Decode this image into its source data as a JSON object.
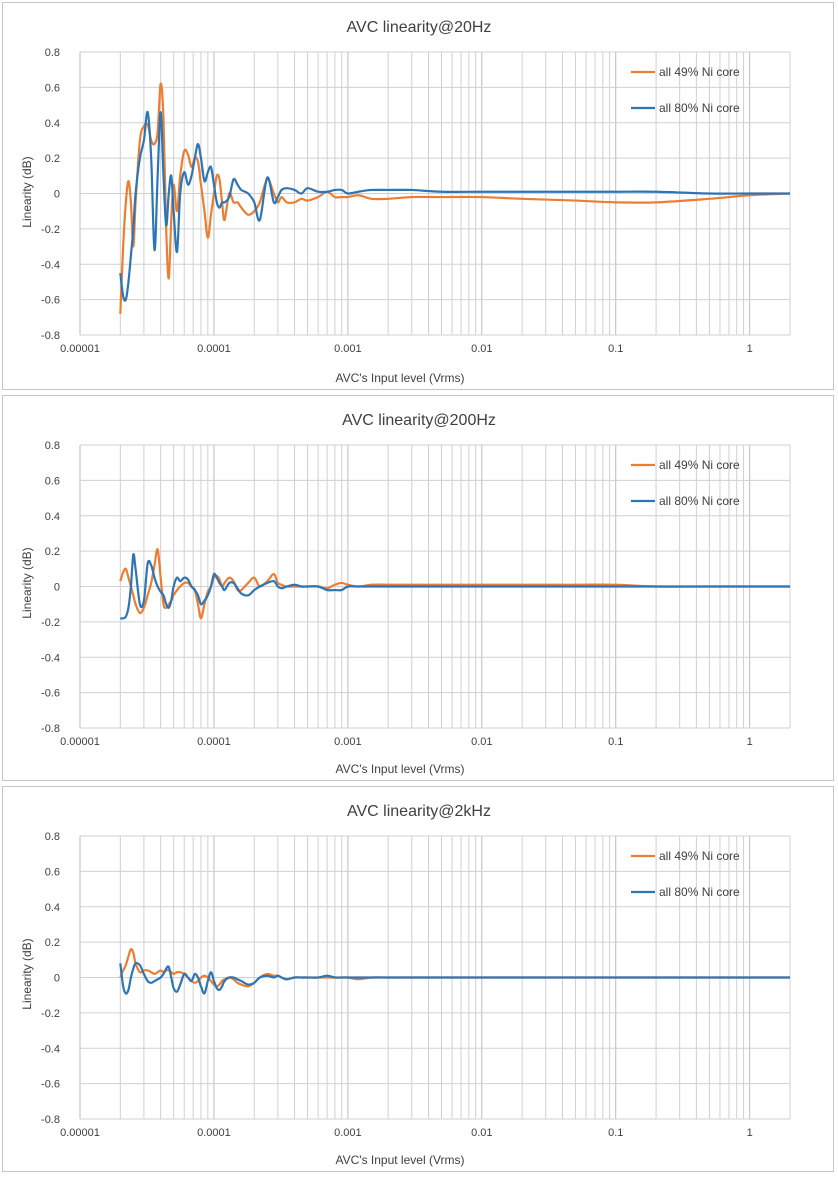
{
  "colors": {
    "series_49": "#ED7D31",
    "series_80": "#2E75B6",
    "grid": "#d0d0d0"
  },
  "chart_data": [
    {
      "type": "line",
      "title": "AVC linearity@20Hz",
      "xlabel": "AVC's Input level (Vrms)",
      "ylabel": "Linearity (dB)",
      "x_scale": "log",
      "xlim": [
        1e-05,
        2
      ],
      "ylim": [
        -0.8,
        0.8
      ],
      "x_tick_labels": [
        "0.00001",
        "0.0001",
        "0.001",
        "0.01",
        "0.1",
        "1"
      ],
      "y_tick_labels": [
        "0.8",
        "0.6",
        "0.4",
        "0.2",
        "0",
        "-0.2",
        "-0.4",
        "-0.6",
        "-0.8"
      ],
      "legend_position": "top-right",
      "grid": true,
      "series": [
        {
          "name": "all 49% Ni core",
          "color": "#ED7D31",
          "x": [
            2e-05,
            2.1e-05,
            2.2e-05,
            2.3e-05,
            2.4e-05,
            2.5e-05,
            2.6e-05,
            2.8e-05,
            3e-05,
            3.2e-05,
            3.4e-05,
            3.6e-05,
            3.8e-05,
            4e-05,
            4.2e-05,
            4.4e-05,
            4.6e-05,
            4.8e-05,
            5e-05,
            5.3e-05,
            5.6e-05,
            6e-05,
            6.4e-05,
            6.8e-05,
            7.2e-05,
            7.6e-05,
            8e-05,
            8.5e-05,
            9e-05,
            9.5e-05,
            0.0001,
            0.000105,
            0.00011,
            0.000115,
            0.00012,
            0.00013,
            0.00014,
            0.00015,
            0.00016,
            0.00018,
            0.0002,
            0.00022,
            0.00025,
            0.00028,
            0.0003,
            0.00032,
            0.00035,
            0.0004,
            0.00045,
            0.0005,
            0.0006,
            0.0007,
            0.0008,
            0.0009,
            0.001,
            0.0012,
            0.0015,
            0.002,
            0.003,
            0.005,
            0.01,
            0.02,
            0.05,
            0.1,
            0.2,
            0.5,
            1,
            2
          ],
          "y": [
            -0.68,
            -0.3,
            -0.05,
            0.07,
            -0.05,
            -0.3,
            -0.05,
            0.3,
            0.38,
            0.39,
            0.3,
            0.28,
            0.35,
            0.62,
            0.42,
            -0.2,
            -0.48,
            -0.15,
            0.05,
            -0.1,
            0.1,
            0.24,
            0.22,
            0.15,
            0.2,
            0.18,
            0.05,
            -0.1,
            -0.25,
            -0.12,
            0.0,
            0.1,
            0.08,
            -0.05,
            -0.15,
            0.0,
            -0.05,
            -0.05,
            -0.08,
            -0.12,
            -0.1,
            -0.05,
            0.08,
            0.0,
            -0.05,
            -0.02,
            -0.05,
            -0.05,
            -0.03,
            -0.04,
            -0.02,
            0.01,
            -0.02,
            -0.02,
            -0.02,
            -0.01,
            -0.03,
            -0.03,
            -0.02,
            -0.02,
            -0.02,
            -0.03,
            -0.04,
            -0.05,
            -0.05,
            -0.03,
            -0.01,
            0.0
          ]
        },
        {
          "name": "all 80% Ni core",
          "color": "#2E75B6",
          "x": [
            2e-05,
            2.1e-05,
            2.2e-05,
            2.3e-05,
            2.4e-05,
            2.5e-05,
            2.6e-05,
            2.8e-05,
            3e-05,
            3.2e-05,
            3.4e-05,
            3.6e-05,
            3.8e-05,
            4e-05,
            4.2e-05,
            4.4e-05,
            4.6e-05,
            4.8e-05,
            5e-05,
            5.3e-05,
            5.6e-05,
            6e-05,
            6.4e-05,
            6.8e-05,
            7.2e-05,
            7.6e-05,
            8e-05,
            8.5e-05,
            9e-05,
            9.5e-05,
            0.0001,
            0.000105,
            0.00011,
            0.000115,
            0.00012,
            0.00013,
            0.00014,
            0.00015,
            0.00016,
            0.00018,
            0.0002,
            0.00022,
            0.00025,
            0.00028,
            0.0003,
            0.00032,
            0.00035,
            0.0004,
            0.00045,
            0.0005,
            0.0006,
            0.0007,
            0.0008,
            0.0009,
            0.001,
            0.0012,
            0.0015,
            0.002,
            0.003,
            0.005,
            0.01,
            0.02,
            0.05,
            0.1,
            0.2,
            0.5,
            1,
            2
          ],
          "y": [
            -0.45,
            -0.58,
            -0.6,
            -0.5,
            -0.35,
            -0.2,
            0.0,
            0.2,
            0.3,
            0.46,
            0.2,
            -0.32,
            0.1,
            0.46,
            0.1,
            -0.18,
            0.0,
            0.1,
            -0.1,
            -0.33,
            0.0,
            0.12,
            0.05,
            0.1,
            0.2,
            0.28,
            0.2,
            0.07,
            0.12,
            0.15,
            0.05,
            -0.05,
            -0.08,
            -0.05,
            -0.05,
            -0.02,
            0.08,
            0.05,
            0.02,
            0.0,
            -0.05,
            -0.15,
            0.09,
            -0.05,
            -0.02,
            0.02,
            0.03,
            0.02,
            0.0,
            0.03,
            0.01,
            0.01,
            0.02,
            0.02,
            0.0,
            0.01,
            0.02,
            0.02,
            0.02,
            0.01,
            0.01,
            0.01,
            0.01,
            0.01,
            0.01,
            0.0,
            0.0,
            0.0
          ]
        }
      ]
    },
    {
      "type": "line",
      "title": "AVC linearity@200Hz",
      "xlabel": "AVC's Input level (Vrms)",
      "ylabel": "Linearity (dB)",
      "x_scale": "log",
      "xlim": [
        1e-05,
        2
      ],
      "ylim": [
        -0.8,
        0.8
      ],
      "x_tick_labels": [
        "0.00001",
        "0.0001",
        "0.001",
        "0.01",
        "0.1",
        "1"
      ],
      "y_tick_labels": [
        "0.8",
        "0.6",
        "0.4",
        "0.2",
        "0",
        "-0.2",
        "-0.4",
        "-0.6",
        "-0.8"
      ],
      "legend_position": "top-right",
      "grid": true,
      "series": [
        {
          "name": "all 49% Ni core",
          "color": "#ED7D31",
          "x": [
            2e-05,
            2.1e-05,
            2.2e-05,
            2.3e-05,
            2.4e-05,
            2.5e-05,
            2.6e-05,
            2.8e-05,
            3e-05,
            3.2e-05,
            3.4e-05,
            3.6e-05,
            3.8e-05,
            4e-05,
            4.2e-05,
            4.4e-05,
            4.6e-05,
            4.8e-05,
            5e-05,
            5.3e-05,
            5.6e-05,
            6e-05,
            6.4e-05,
            6.8e-05,
            7.2e-05,
            7.6e-05,
            8e-05,
            8.5e-05,
            9e-05,
            9.5e-05,
            0.0001,
            0.000105,
            0.00011,
            0.000115,
            0.00012,
            0.00013,
            0.00014,
            0.00015,
            0.00016,
            0.00018,
            0.0002,
            0.00022,
            0.00025,
            0.00028,
            0.0003,
            0.00032,
            0.00035,
            0.0004,
            0.00045,
            0.0005,
            0.0006,
            0.0007,
            0.0008,
            0.0009,
            0.001,
            0.0012,
            0.0015,
            0.002,
            0.003,
            0.005,
            0.01,
            0.02,
            0.05,
            0.1,
            0.2,
            0.5,
            1,
            2
          ],
          "y": [
            0.03,
            0.08,
            0.1,
            0.05,
            0.0,
            -0.05,
            -0.1,
            -0.15,
            -0.12,
            -0.05,
            0.02,
            0.12,
            0.21,
            0.05,
            -0.1,
            -0.12,
            -0.1,
            -0.08,
            -0.05,
            -0.02,
            0.0,
            0.02,
            0.02,
            0.0,
            -0.02,
            -0.1,
            -0.18,
            -0.1,
            -0.03,
            0.0,
            0.05,
            0.06,
            0.04,
            0.0,
            0.02,
            0.05,
            0.03,
            -0.02,
            -0.02,
            0.02,
            0.05,
            0.0,
            0.03,
            0.07,
            0.02,
            0.01,
            0.0,
            0.0,
            0.0,
            0.0,
            0.0,
            -0.01,
            0.01,
            0.02,
            0.01,
            0.0,
            0.01,
            0.01,
            0.01,
            0.01,
            0.01,
            0.01,
            0.01,
            0.01,
            0.0,
            0.0,
            0.0,
            0.0
          ]
        },
        {
          "name": "all 80% Ni core",
          "color": "#2E75B6",
          "x": [
            2e-05,
            2.1e-05,
            2.2e-05,
            2.3e-05,
            2.4e-05,
            2.5e-05,
            2.6e-05,
            2.8e-05,
            3e-05,
            3.2e-05,
            3.4e-05,
            3.6e-05,
            3.8e-05,
            4e-05,
            4.2e-05,
            4.4e-05,
            4.6e-05,
            4.8e-05,
            5e-05,
            5.3e-05,
            5.6e-05,
            6e-05,
            6.4e-05,
            6.8e-05,
            7.2e-05,
            7.6e-05,
            8e-05,
            8.5e-05,
            9e-05,
            9.5e-05,
            0.0001,
            0.000105,
            0.00011,
            0.000115,
            0.00012,
            0.00013,
            0.00014,
            0.00015,
            0.00016,
            0.00018,
            0.0002,
            0.00022,
            0.00025,
            0.00028,
            0.0003,
            0.00032,
            0.00035,
            0.0004,
            0.00045,
            0.0005,
            0.0006,
            0.0007,
            0.0008,
            0.0009,
            0.001,
            0.0012,
            0.0015,
            0.002,
            0.003,
            0.005,
            0.01,
            0.02,
            0.05,
            0.1,
            0.2,
            0.5,
            1,
            2
          ],
          "y": [
            -0.18,
            -0.18,
            -0.17,
            -0.12,
            0.0,
            0.18,
            0.1,
            -0.1,
            -0.08,
            0.13,
            0.12,
            0.05,
            0.0,
            -0.03,
            -0.05,
            -0.1,
            -0.12,
            -0.08,
            0.0,
            0.05,
            0.03,
            0.05,
            0.04,
            0.0,
            -0.02,
            -0.05,
            -0.1,
            -0.08,
            -0.05,
            0.0,
            0.07,
            0.05,
            0.02,
            0.0,
            -0.02,
            0.02,
            0.02,
            -0.01,
            -0.04,
            -0.05,
            -0.02,
            0.0,
            0.02,
            0.03,
            0.0,
            -0.01,
            0.0,
            0.01,
            0.0,
            0.0,
            0.0,
            -0.02,
            -0.02,
            -0.02,
            0.0,
            0.0,
            0.0,
            0.0,
            0.0,
            0.0,
            0.0,
            0.0,
            0.0,
            0.0,
            0.0,
            0.0,
            0.0,
            0.0
          ]
        }
      ]
    },
    {
      "type": "line",
      "title": "AVC linearity@2kHz",
      "xlabel": "AVC's Input level (Vrms)",
      "ylabel": "Linearity (dB)",
      "x_scale": "log",
      "xlim": [
        1e-05,
        2
      ],
      "ylim": [
        -0.8,
        0.8
      ],
      "x_tick_labels": [
        "0.00001",
        "0.0001",
        "0.001",
        "0.01",
        "0.1",
        "1"
      ],
      "y_tick_labels": [
        "0.8",
        "0.6",
        "0.4",
        "0.2",
        "0",
        "-0.2",
        "-0.4",
        "-0.6",
        "-0.8"
      ],
      "legend_position": "top-right",
      "grid": true,
      "series": [
        {
          "name": "all 49% Ni core",
          "color": "#ED7D31",
          "x": [
            2e-05,
            2.1e-05,
            2.2e-05,
            2.3e-05,
            2.4e-05,
            2.5e-05,
            2.6e-05,
            2.8e-05,
            3e-05,
            3.2e-05,
            3.4e-05,
            3.6e-05,
            3.8e-05,
            4e-05,
            4.2e-05,
            4.4e-05,
            4.6e-05,
            4.8e-05,
            5e-05,
            5.3e-05,
            5.6e-05,
            6e-05,
            6.4e-05,
            6.8e-05,
            7.2e-05,
            7.6e-05,
            8e-05,
            8.5e-05,
            9e-05,
            9.5e-05,
            0.0001,
            0.000105,
            0.00011,
            0.000115,
            0.00012,
            0.00013,
            0.00014,
            0.00015,
            0.00016,
            0.00018,
            0.0002,
            0.00022,
            0.00025,
            0.00028,
            0.0003,
            0.00032,
            0.00035,
            0.0004,
            0.00045,
            0.0005,
            0.0006,
            0.0007,
            0.0008,
            0.0009,
            0.001,
            0.0012,
            0.0015,
            0.002,
            0.003,
            0.005,
            0.01,
            0.02,
            0.05,
            0.1,
            0.2,
            0.5,
            1,
            2
          ],
          "y": [
            0.0,
            0.04,
            0.07,
            0.12,
            0.16,
            0.14,
            0.08,
            0.03,
            0.04,
            0.04,
            0.03,
            0.02,
            0.03,
            0.04,
            0.03,
            0.04,
            0.04,
            0.03,
            0.02,
            0.03,
            0.03,
            0.02,
            0.0,
            -0.02,
            -0.03,
            -0.02,
            0.0,
            0.01,
            0.0,
            -0.02,
            -0.04,
            -0.05,
            -0.04,
            -0.02,
            -0.01,
            0.0,
            -0.01,
            -0.03,
            -0.04,
            -0.05,
            -0.03,
            0.0,
            0.02,
            0.01,
            0.01,
            0.0,
            -0.01,
            0.0,
            0.0,
            0.0,
            0.0,
            0.0,
            0.0,
            0.0,
            0.0,
            -0.01,
            0.0,
            0.0,
            0.0,
            0.0,
            0.0,
            0.0,
            0.0,
            0.0,
            0.0,
            0.0,
            0.0,
            0.0
          ]
        },
        {
          "name": "all 80% Ni core",
          "color": "#2E75B6",
          "x": [
            2e-05,
            2.1e-05,
            2.2e-05,
            2.3e-05,
            2.4e-05,
            2.5e-05,
            2.6e-05,
            2.8e-05,
            3e-05,
            3.2e-05,
            3.4e-05,
            3.6e-05,
            3.8e-05,
            4e-05,
            4.2e-05,
            4.4e-05,
            4.6e-05,
            4.8e-05,
            5e-05,
            5.3e-05,
            5.6e-05,
            6e-05,
            6.4e-05,
            6.8e-05,
            7.2e-05,
            7.6e-05,
            8e-05,
            8.5e-05,
            9e-05,
            9.5e-05,
            0.0001,
            0.000105,
            0.00011,
            0.000115,
            0.00012,
            0.00013,
            0.00014,
            0.00015,
            0.00016,
            0.00018,
            0.0002,
            0.00022,
            0.00025,
            0.00028,
            0.0003,
            0.00032,
            0.00035,
            0.0004,
            0.00045,
            0.0005,
            0.0006,
            0.0007,
            0.0008,
            0.0009,
            0.001,
            0.0012,
            0.0015,
            0.002,
            0.003,
            0.005,
            0.01,
            0.02,
            0.05,
            0.1,
            0.2,
            0.5,
            1,
            2
          ],
          "y": [
            0.08,
            -0.05,
            -0.09,
            -0.07,
            0.0,
            0.05,
            0.08,
            0.07,
            0.02,
            -0.02,
            -0.03,
            -0.02,
            -0.01,
            0.0,
            0.02,
            0.05,
            0.06,
            0.0,
            -0.06,
            -0.08,
            -0.04,
            0.02,
            0.0,
            -0.02,
            0.02,
            0.0,
            -0.05,
            -0.09,
            -0.02,
            0.03,
            -0.02,
            -0.06,
            -0.07,
            -0.05,
            -0.02,
            0.0,
            0.0,
            -0.01,
            -0.02,
            -0.04,
            -0.03,
            0.0,
            0.01,
            0.0,
            0.01,
            0.0,
            -0.01,
            0.0,
            0.0,
            0.0,
            0.0,
            0.01,
            0.0,
            0.0,
            0.0,
            0.0,
            0.0,
            0.0,
            0.0,
            0.0,
            0.0,
            0.0,
            0.0,
            0.0,
            0.0,
            0.0,
            0.0,
            0.0
          ]
        }
      ]
    }
  ]
}
